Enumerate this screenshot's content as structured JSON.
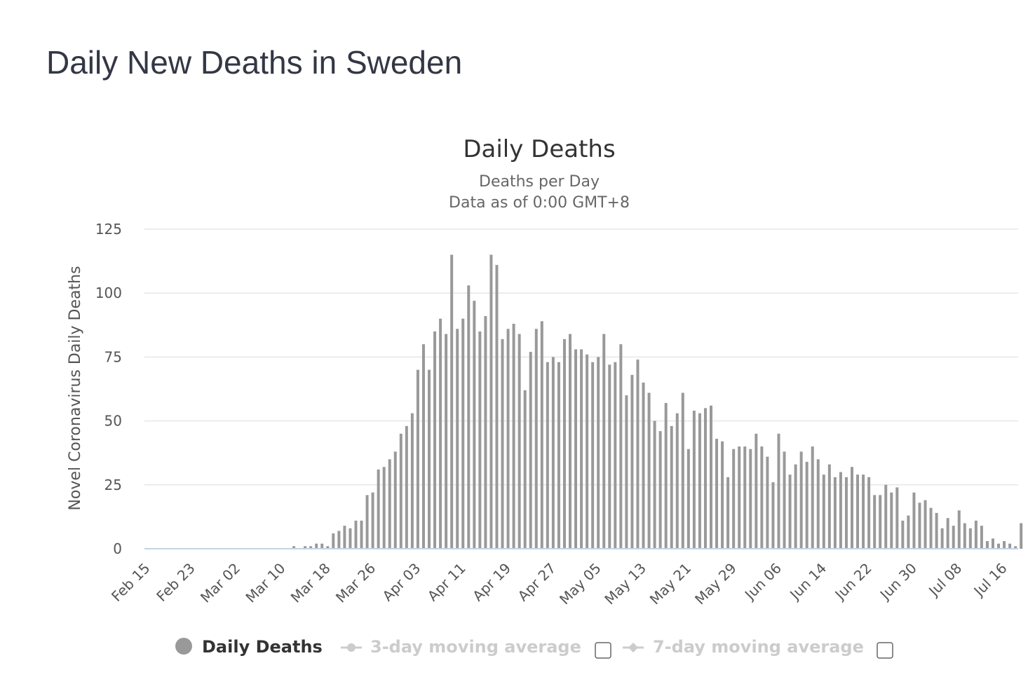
{
  "page": {
    "title": "Daily New Deaths in Sweden"
  },
  "chart_data": {
    "type": "bar",
    "title": "Daily Deaths",
    "subtitle": "Deaths per Day",
    "subtitle2": "Data as of 0:00 GMT+8",
    "xlabel": "",
    "ylabel": "Novel Coronavirus Daily Deaths",
    "ylim": [
      0,
      125
    ],
    "yticks": [
      0,
      25,
      50,
      75,
      100,
      125
    ],
    "grid": true,
    "legend_position": "bottom-center",
    "start_date": "Feb 15",
    "xticks": [
      "Feb 15",
      "Feb 23",
      "Mar 02",
      "Mar 10",
      "Mar 18",
      "Mar 26",
      "Apr 03",
      "Apr 11",
      "Apr 19",
      "Apr 27",
      "May 05",
      "May 13",
      "May 21",
      "May 29",
      "Jun 06",
      "Jun 14",
      "Jun 22",
      "Jun 30",
      "Jul 08",
      "Jul 16"
    ],
    "series": [
      {
        "name": "Daily Deaths",
        "color": "#999999",
        "values": [
          0,
          0,
          0,
          0,
          0,
          0,
          0,
          0,
          0,
          0,
          0,
          0,
          0,
          0,
          0,
          0,
          0,
          0,
          0,
          0,
          0,
          0,
          0,
          0,
          0,
          0,
          1,
          0,
          1,
          1,
          2,
          2,
          1,
          6,
          7,
          9,
          8,
          11,
          11,
          21,
          22,
          31,
          32,
          35,
          38,
          45,
          48,
          53,
          70,
          80,
          70,
          85,
          90,
          84,
          115,
          86,
          90,
          103,
          97,
          85,
          91,
          115,
          111,
          82,
          86,
          88,
          84,
          62,
          77,
          86,
          89,
          73,
          75,
          73,
          82,
          84,
          78,
          78,
          76,
          73,
          75,
          84,
          72,
          73,
          80,
          60,
          68,
          74,
          65,
          61,
          50,
          46,
          57,
          48,
          53,
          61,
          39,
          54,
          53,
          55,
          56,
          43,
          42,
          28,
          39,
          40,
          40,
          39,
          45,
          40,
          36,
          26,
          45,
          38,
          29,
          33,
          38,
          34,
          40,
          35,
          29,
          33,
          28,
          30,
          28,
          32,
          29,
          29,
          28,
          21,
          21,
          25,
          22,
          24,
          11,
          13,
          22,
          18,
          19,
          16,
          14,
          8,
          12,
          9,
          15,
          10,
          8,
          11,
          9,
          3,
          4,
          2,
          3,
          2,
          1,
          10
        ]
      }
    ],
    "legend": [
      {
        "label": "Daily Deaths",
        "color": "#333333",
        "marker_color": "#999999",
        "enabled": true
      },
      {
        "label": "3-day moving average",
        "color": "#cccccc",
        "marker_color": "#cccccc",
        "enabled": false
      },
      {
        "label": "7-day moving average",
        "color": "#cccccc",
        "marker_color": "#cccccc",
        "enabled": false
      }
    ]
  }
}
